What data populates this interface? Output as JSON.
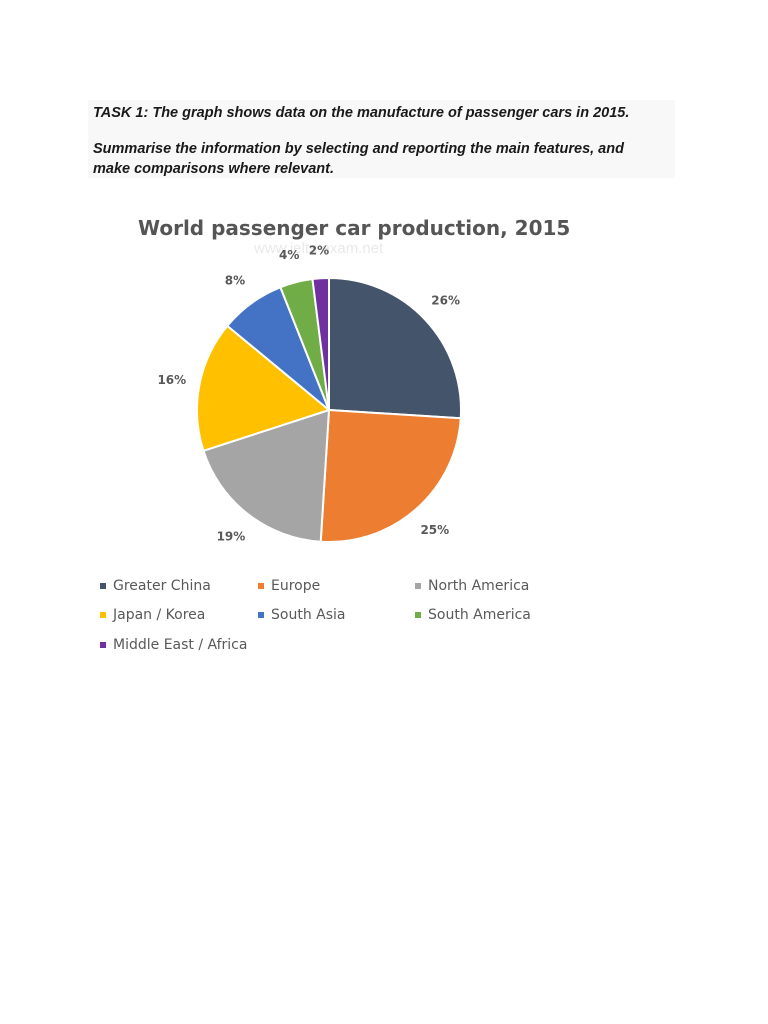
{
  "task": {
    "line1": "TASK 1: The graph shows data on the manufacture of passenger cars in 2015.",
    "line2": "Summarise the information by selecting and reporting the main features, and make comparisons where relevant."
  },
  "watermark": "www.ielts-exam.net",
  "chart_data": {
    "type": "pie",
    "title": "World passenger car production, 2015",
    "legend_position": "bottom",
    "slices": [
      {
        "label": "Greater China",
        "value": 26,
        "data_label": "26%",
        "color": "#44546a"
      },
      {
        "label": "Europe",
        "value": 25,
        "data_label": "25%",
        "color": "#ed7d31"
      },
      {
        "label": "North America",
        "value": 19,
        "data_label": "19%",
        "color": "#a5a5a5"
      },
      {
        "label": "Japan / Korea",
        "value": 16,
        "data_label": "16%",
        "color": "#ffc000"
      },
      {
        "label": "South Asia",
        "value": 8,
        "data_label": "8%",
        "color": "#4472c4"
      },
      {
        "label": "South America",
        "value": 4,
        "data_label": "4%",
        "color": "#70ad47"
      },
      {
        "label": "Middle East / Africa",
        "value": 2,
        "data_label": "2%",
        "color": "#7030a0"
      }
    ]
  }
}
